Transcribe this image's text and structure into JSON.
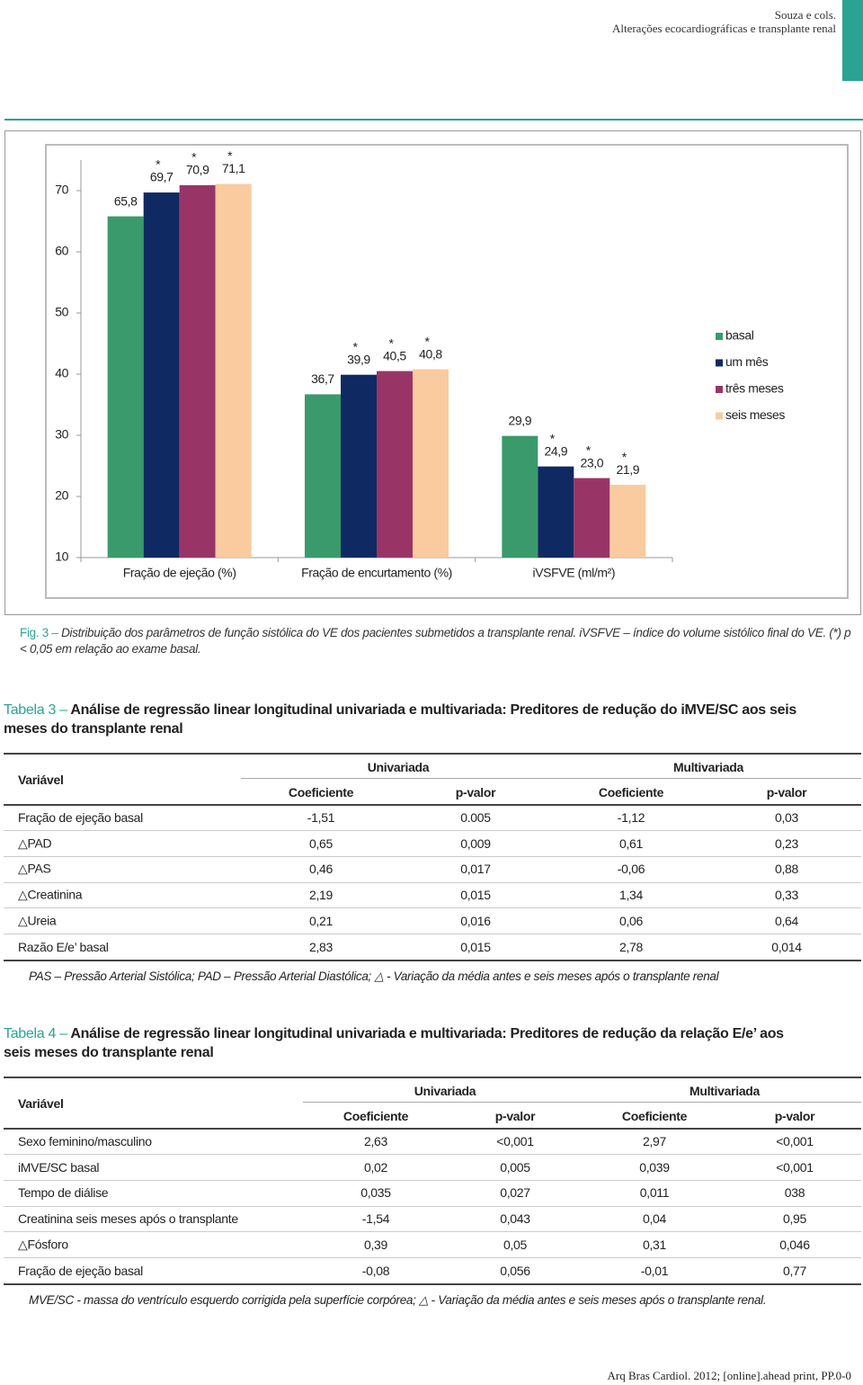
{
  "header": {
    "author": "Souza e cols.",
    "running_title": "Alterações ecocardiográficas e transplante renal"
  },
  "chart_data": {
    "type": "bar",
    "categories": [
      "Fração de ejeção (%)",
      "Fração de encurtamento (%)",
      "iVSFVE (ml/m²)"
    ],
    "series": [
      {
        "name": "basal",
        "color": "#3a9a6b",
        "values": [
          65.8,
          36.7,
          29.9
        ],
        "value_labels": [
          "65,8",
          "36,7",
          "29,9"
        ]
      },
      {
        "name": "um mês",
        "color": "#0f2a62",
        "values": [
          69.7,
          39.9,
          24.9
        ],
        "value_labels": [
          "69,7",
          "39,9",
          "24,9"
        ],
        "marker": "*"
      },
      {
        "name": "três meses",
        "color": "#993566",
        "values": [
          70.9,
          40.5,
          23.0
        ],
        "value_labels": [
          "70,9",
          "40,5",
          "23,0"
        ],
        "marker": "*"
      },
      {
        "name": "seis meses",
        "color": "#f9cb9f",
        "values": [
          71.1,
          40.8,
          21.9
        ],
        "value_labels": [
          "71,1",
          "40,8",
          "21,9"
        ],
        "marker": "*"
      }
    ],
    "ylim": [
      10,
      75
    ],
    "yticks": [
      10,
      20,
      30,
      40,
      50,
      60,
      70
    ],
    "grid": false,
    "legend": "right"
  },
  "figure_caption": {
    "label": "Fig. 3 –",
    "text": "Distribuição dos parâmetros de função sistólica do VE dos pacientes submetidos a transplante renal. iVSFVE – índice do volume sistólico final do VE. (*) p < 0,05 em relação ao exame basal."
  },
  "table_3": {
    "label": "Tabela 3 –",
    "title": "Análise de regressão linear longitudinal univariada e multivariada: Preditores de redução do iMVE/SC aos seis meses do transplante renal",
    "variable_header": "Variável",
    "groups": [
      "Univariada",
      "Multivariada"
    ],
    "subheaders": [
      "Coeficiente",
      "p-valor",
      "Coeficiente",
      "p-valor"
    ],
    "rows": [
      [
        "Fração de ejeção basal",
        "-1,51",
        "0.005",
        "-1,12",
        "0,03"
      ],
      [
        "△PAD",
        "0,65",
        "0,009",
        "0,61",
        "0,23"
      ],
      [
        "△PAS",
        "0,46",
        "0,017",
        "-0,06",
        "0,88"
      ],
      [
        "△Creatinina",
        "2,19",
        "0,015",
        "1,34",
        "0,33"
      ],
      [
        "△Ureia",
        "0,21",
        "0,016",
        "0,06",
        "0,64"
      ],
      [
        "Razão E/e’ basal",
        "2,83",
        "0,015",
        "2,78",
        "0,014"
      ]
    ],
    "footnote": "PAS – Pressão Arterial Sistólica; PAD – Pressão Arterial Diastólica; △ - Variação da média antes e seis meses após o transplante renal"
  },
  "table_4": {
    "label": "Tabela 4 –",
    "title": "Análise de regressão linear longitudinal univariada e multivariada: Preditores de redução da relação E/e’ aos seis meses do transplante renal",
    "variable_header": "Variável",
    "groups": [
      "Univariada",
      "Multivariada"
    ],
    "subheaders": [
      "Coeficiente",
      "p-valor",
      "Coeficiente",
      "p-valor"
    ],
    "rows": [
      [
        "Sexo feminino/masculino",
        "2,63",
        "<0,001",
        "2,97",
        "<0,001"
      ],
      [
        "iMVE/SC basal",
        "0,02",
        "0,005",
        "0,039",
        "<0,001"
      ],
      [
        "Tempo de diálise",
        "0,035",
        "0,027",
        "0,011",
        "038"
      ],
      [
        "Creatinina seis meses após o transplante",
        "-1,54",
        "0,043",
        "0,04",
        "0,95"
      ],
      [
        "△Fósforo",
        "0,39",
        "0,05",
        "0,31",
        "0,046"
      ],
      [
        "Fração de ejeção basal",
        "-0,08",
        "0,056",
        "-0,01",
        "0,77"
      ]
    ],
    "footnote": "MVE/SC - massa do ventrículo esquerdo corrigida pela superfície corpórea; △ - Variação da média antes e seis meses após o transplante renal."
  },
  "footer": "Arq Bras Cardiol. 2012; [online].ahead print, PP.0-0"
}
